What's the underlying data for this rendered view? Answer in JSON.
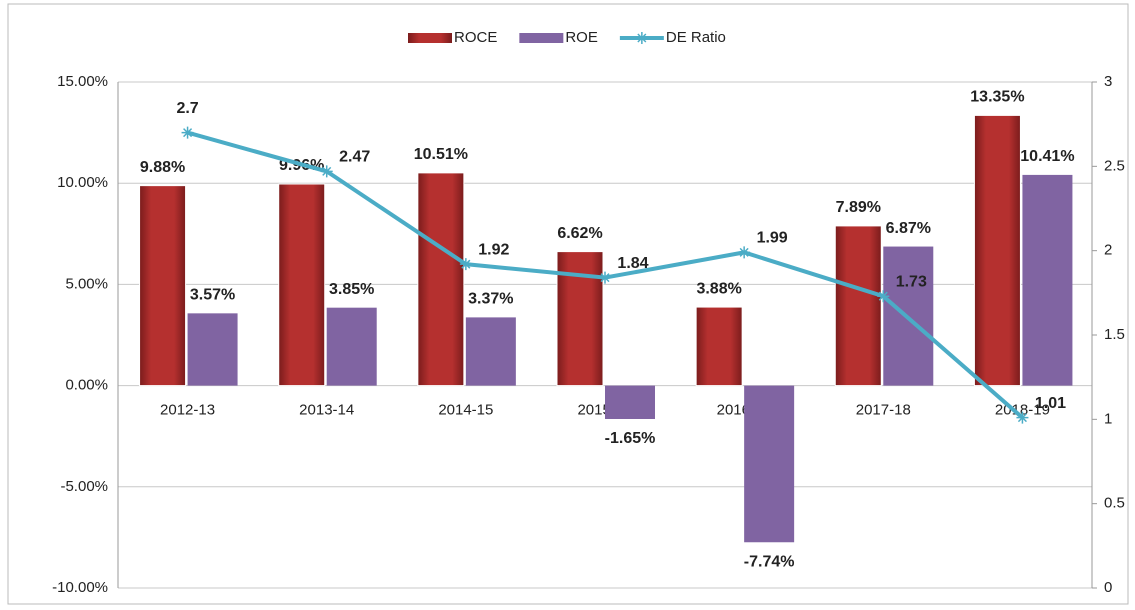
{
  "chart_data": {
    "type": "bar",
    "categories": [
      "2012-13",
      "2013-14",
      "2014-15",
      "2015-16",
      "2016-17",
      "2017-18",
      "2018-19"
    ],
    "series": [
      {
        "name": "ROCE",
        "type": "bar",
        "color": "#b5302f",
        "values": [
          9.88,
          9.96,
          10.51,
          6.62,
          3.88,
          7.89,
          13.35
        ],
        "value_labels": [
          "9.88%",
          "9.96%",
          "10.51%",
          "6.62%",
          "3.88%",
          "7.89%",
          "13.35%"
        ],
        "label_color": "#c0282d"
      },
      {
        "name": "ROE",
        "type": "bar",
        "color": "#8064a2",
        "values": [
          3.57,
          3.85,
          3.37,
          -1.65,
          -7.74,
          6.87,
          10.41
        ],
        "value_labels": [
          "3.57%",
          "3.85%",
          "3.37%",
          "-1.65%",
          "-7.74%",
          "6.87%",
          "10.41%"
        ],
        "label_color": "#7030a0"
      },
      {
        "name": "DE Ratio",
        "type": "line",
        "axis": "y2",
        "color": "#4bacc6",
        "values": [
          2.7,
          2.47,
          1.92,
          1.84,
          1.99,
          1.73,
          1.01
        ],
        "label_color": "#31849b"
      }
    ],
    "ylim": [
      -10,
      15
    ],
    "yticks": [
      {
        "value": -10,
        "label": "-10.00%"
      },
      {
        "value": -5,
        "label": "-5.00%"
      },
      {
        "value": 0,
        "label": "0.00%"
      },
      {
        "value": 5,
        "label": "5.00%"
      },
      {
        "value": 10,
        "label": "10.00%"
      },
      {
        "value": 15,
        "label": "15.00%"
      }
    ],
    "y2lim": [
      0,
      3
    ],
    "y2ticks": [
      0,
      0.5,
      1,
      1.5,
      2,
      2.5,
      3
    ],
    "grid": true,
    "legend": "top"
  }
}
